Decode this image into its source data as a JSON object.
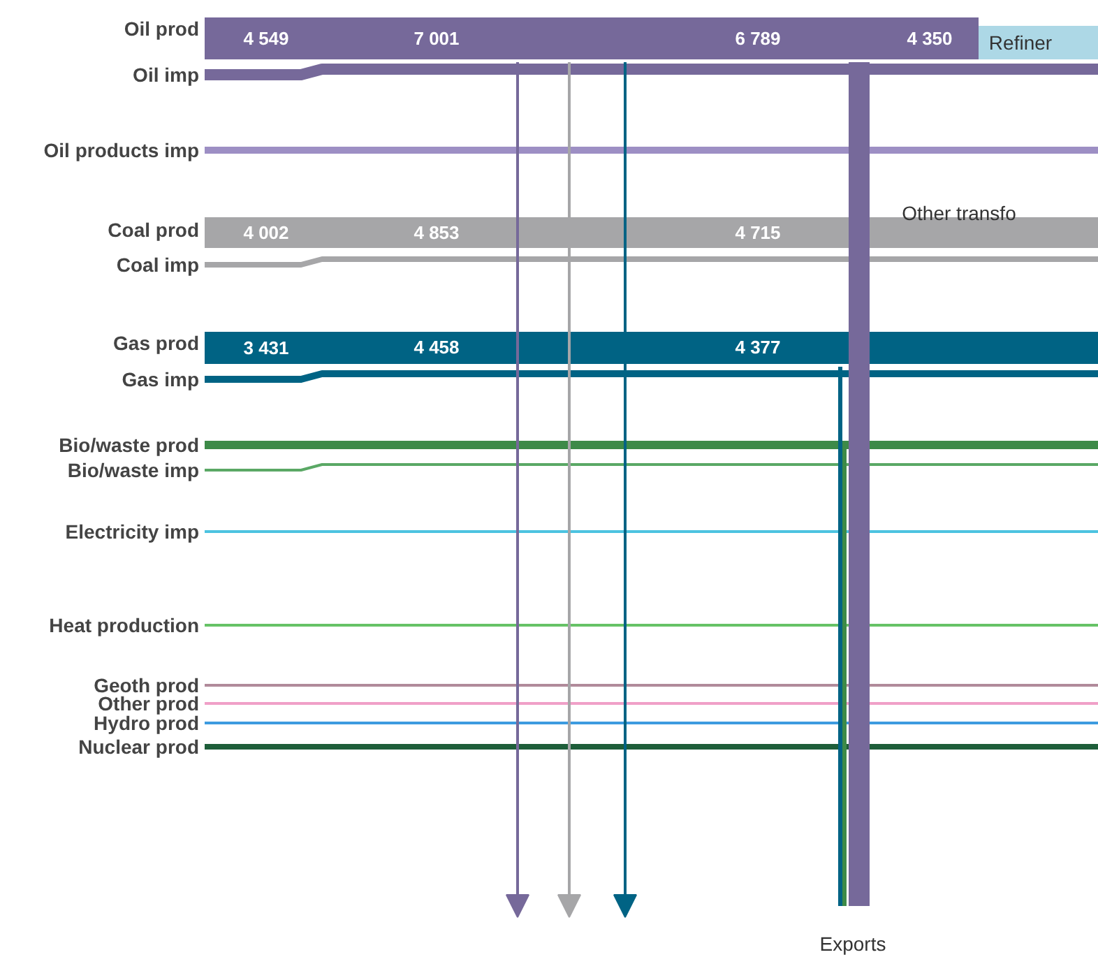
{
  "chart_data": {
    "type": "other",
    "categories": [
      "Oil prod",
      "Oil imp",
      "Oil products imp",
      "Coal prod",
      "Coal imp",
      "Gas prod",
      "Gas imp",
      "Bio/waste prod",
      "Bio/waste imp",
      "Electricity imp",
      "Heat production",
      "Geoth prod",
      "Other prod",
      "Hydro prod",
      "Nuclear prod"
    ],
    "colors": [
      "#76699a",
      "#76699a",
      "#9d8fc4",
      "#a6a6a8",
      "#a6a6a8",
      "#006384",
      "#006384",
      "#3d8a48",
      "#5aa865",
      "#4cc3e0",
      "#66c266",
      "#b08a9a",
      "#f0a0c8",
      "#3d9be0",
      "#1e5e3a"
    ],
    "values": [
      4549,
      null,
      null,
      4002,
      null,
      3431,
      null,
      null,
      null,
      null,
      null,
      null,
      null,
      null,
      null
    ],
    "data_labels": true,
    "annotations": [
      "7 001",
      "6 789",
      "4 350",
      "4 853",
      "4 715",
      "4 458",
      "4 377",
      "Refiner",
      "Other transfo",
      "Exports"
    ]
  }
}
